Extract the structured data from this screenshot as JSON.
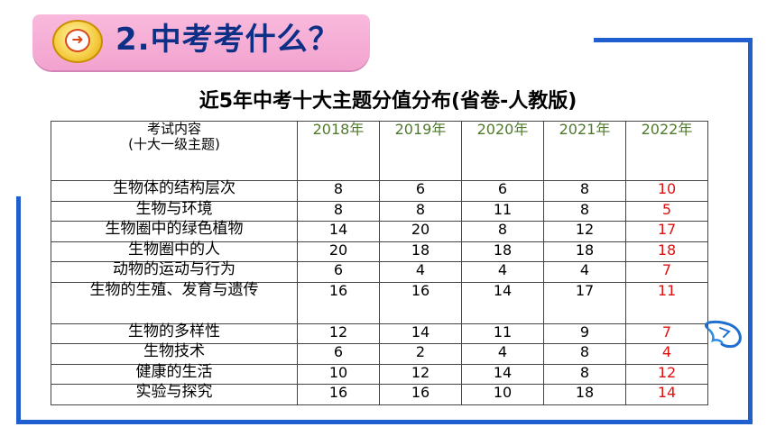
{
  "header": {
    "title": "2.中考考什么？",
    "badge_icon": "arrow-right-icon"
  },
  "table_title": "近5年中考十大主题分值分布(省卷-人教版)",
  "table": {
    "content_header_line1": "考试内容",
    "content_header_line2": "(十大一级主题)",
    "years": [
      "2018年",
      "2019年",
      "2020年",
      "2021年",
      "2022年"
    ],
    "rows": [
      {
        "topic": "生物体的结构层次",
        "values": [
          "8",
          "6",
          "6",
          "8",
          "10"
        ]
      },
      {
        "topic": "生物与环境",
        "values": [
          "8",
          "8",
          "11",
          "8",
          "5"
        ]
      },
      {
        "topic": "生物圈中的绿色植物",
        "values": [
          "14",
          "20",
          "8",
          "12",
          "17"
        ]
      },
      {
        "topic": "生物圈中的人",
        "values": [
          "20",
          "18",
          "18",
          "18",
          "18"
        ]
      },
      {
        "topic": "动物的运动与行为",
        "values": [
          "6",
          "4",
          "4",
          "4",
          "7"
        ]
      },
      {
        "topic": "生物的生殖、发育与遗传",
        "values": [
          "16",
          "16",
          "14",
          "17",
          "11"
        ]
      },
      {
        "topic": "生物的多样性",
        "values": [
          "12",
          "14",
          "11",
          "9",
          "7"
        ]
      },
      {
        "topic": "生物技术",
        "values": [
          "6",
          "2",
          "4",
          "8",
          "4"
        ]
      },
      {
        "topic": "健康的生活",
        "values": [
          "10",
          "12",
          "14",
          "8",
          "12"
        ]
      },
      {
        "topic": "实验与探究",
        "values": [
          "16",
          "16",
          "10",
          "18",
          "14"
        ]
      }
    ],
    "highlight_color": "#e01010",
    "year_color": "#4f7a2b"
  },
  "colors": {
    "frame": "#1f5fcf",
    "header_pill": "#f2a3cf",
    "header_text": "#0d2f86"
  },
  "decor_icon": "hand-drawn-sketch-icon"
}
